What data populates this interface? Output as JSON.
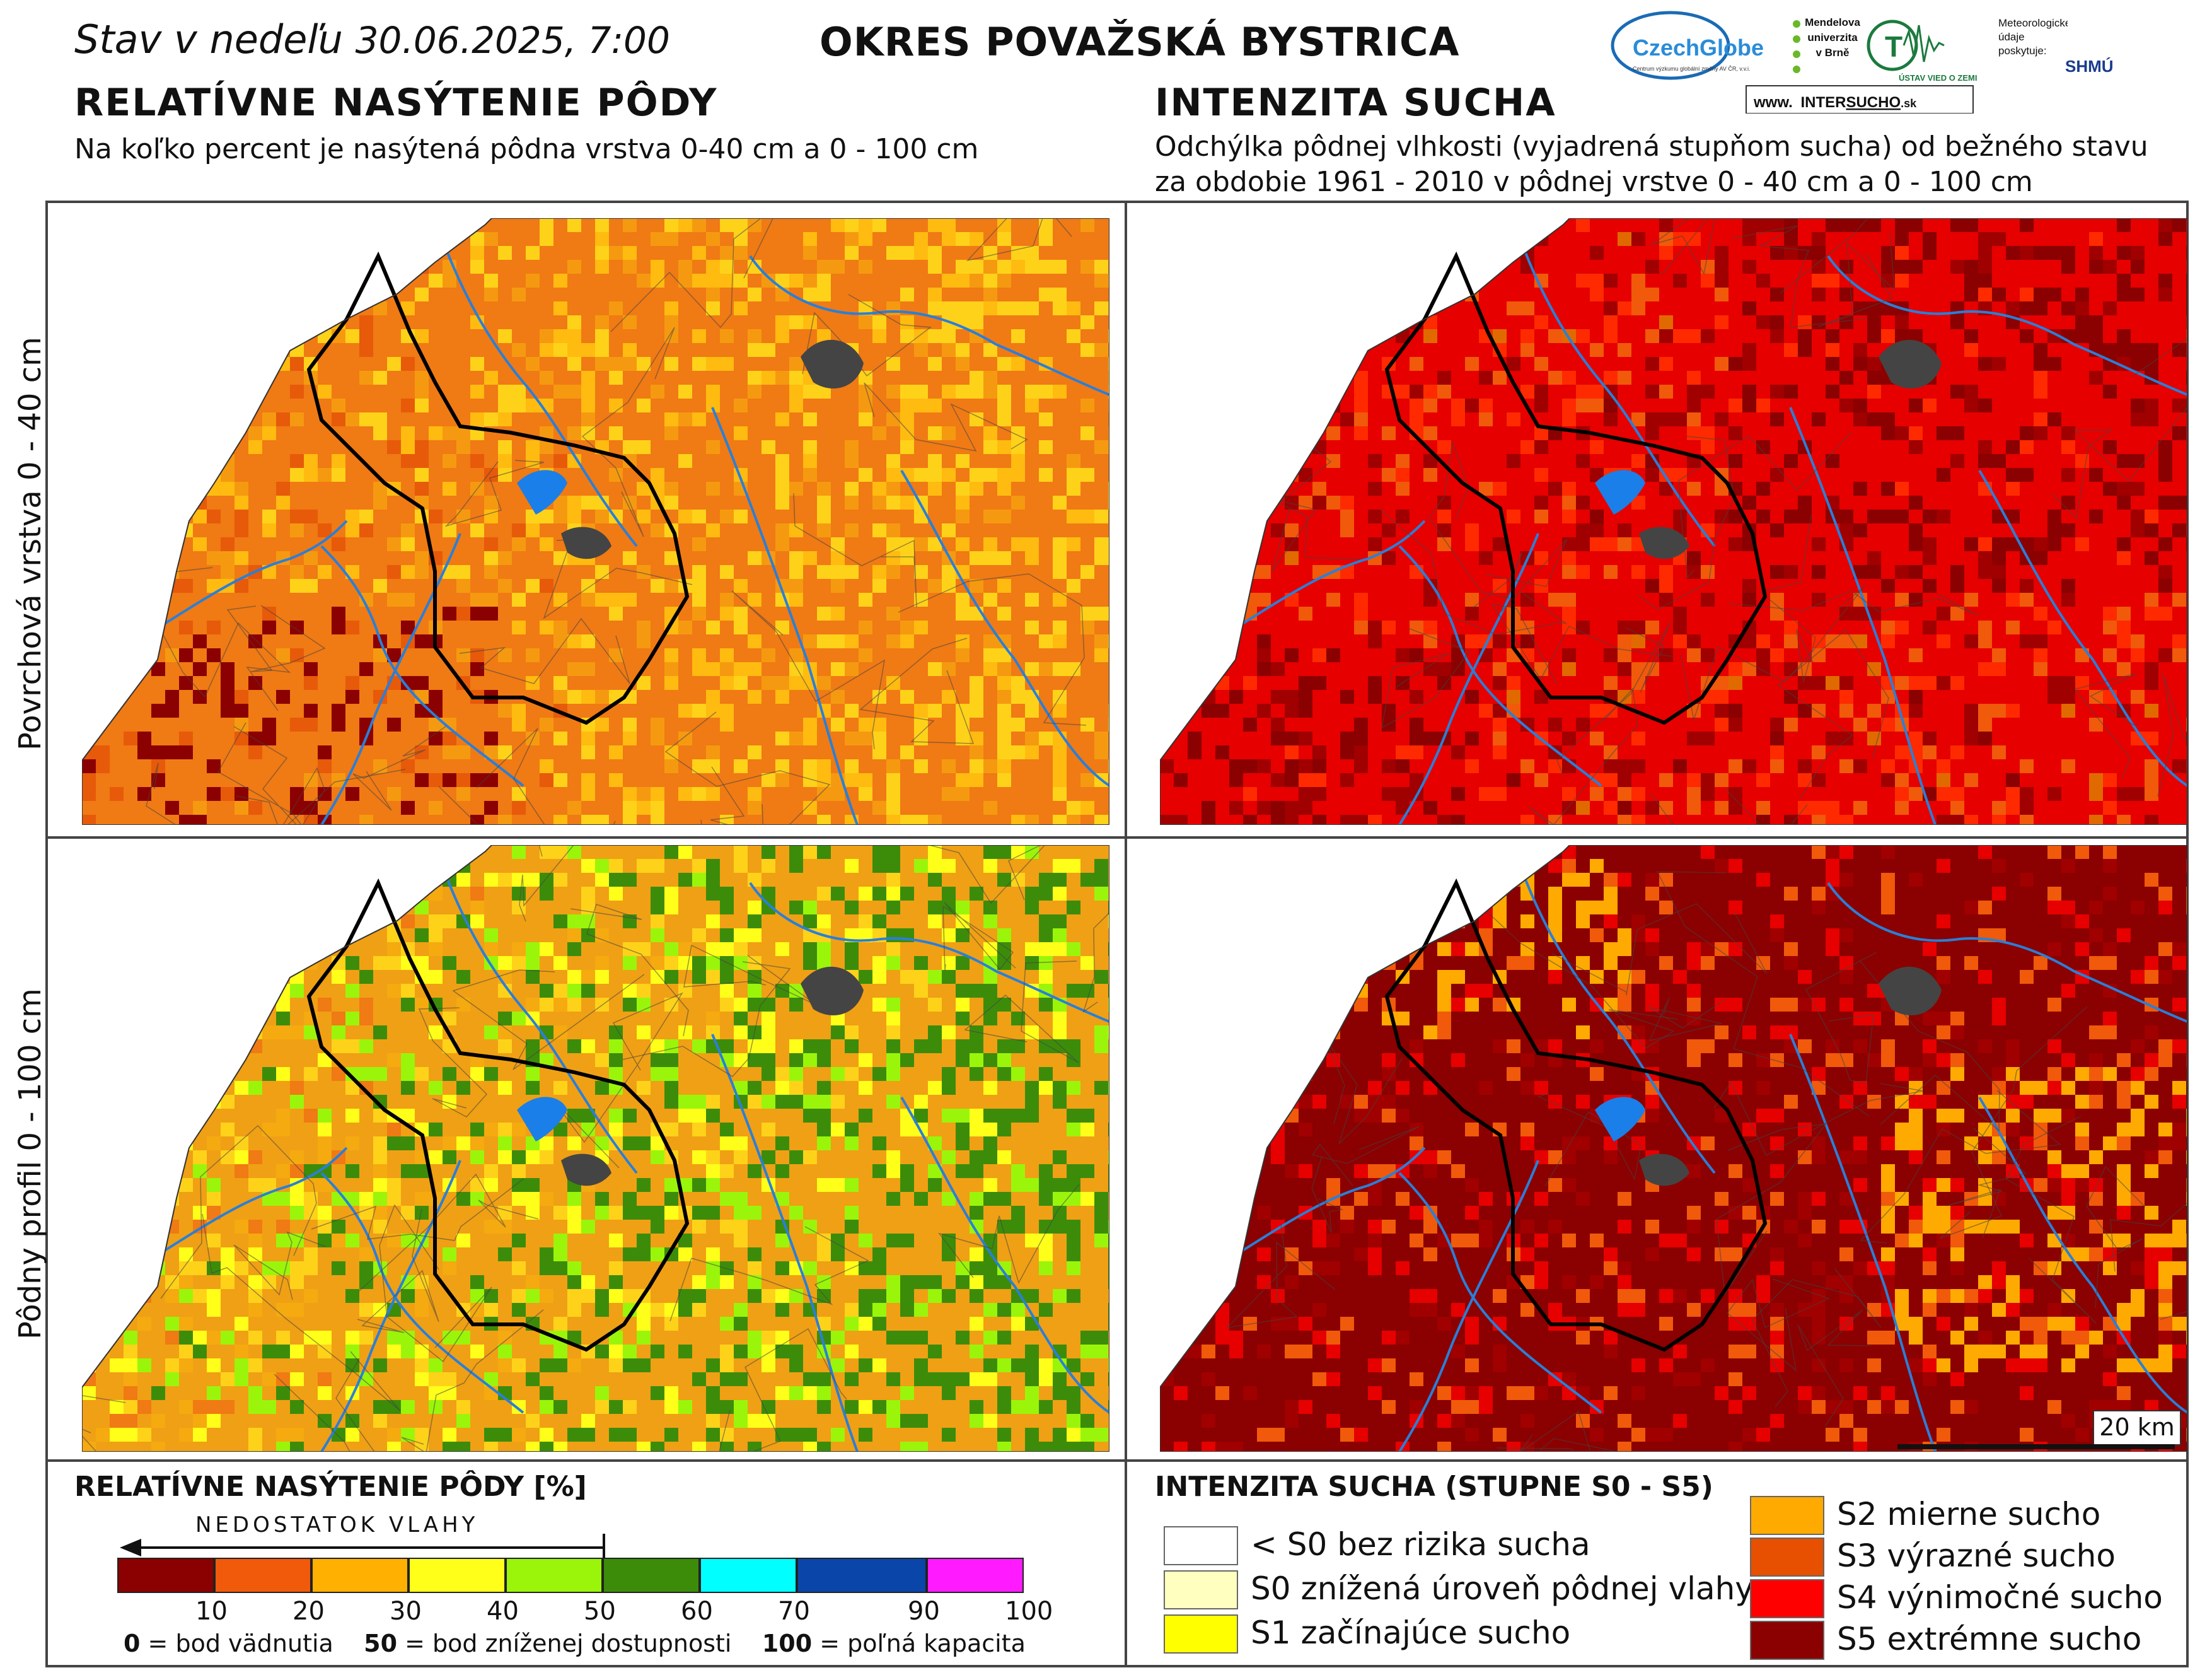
{
  "header": {
    "date_prefix": "Stav v nedeľu",
    "date": "30.06.2025, 7:00",
    "district": "OKRES  POVAŽSKÁ BYSTRICA"
  },
  "logos": {
    "czechglobe": "CzechGlobe",
    "czechglobe_sub": "Centrum výzkumu globální změny AV ČR, v.v.i.",
    "mendel": "Mendelova univerzita v Brně",
    "ustav": "ÚSTAV VIED O ZEMI",
    "meteo": "Meteorologické údaje poskytuje:",
    "shmu": "SHMÚ",
    "intersucho_prefix": "www.",
    "intersucho_a": "INTER",
    "intersucho_b": "SUCHO",
    "intersucho_suffix": ".sk"
  },
  "left_section": {
    "title": "RELATÍVNE NASÝTENIE PÔDY",
    "subtitle": "Na koľko percent je nasýtená pôdna vrstva 0-40 cm a 0 - 100 cm"
  },
  "right_section": {
    "title": "INTENZITA SUCHA",
    "subtitle_line1": "Odchýlka pôdnej vlhkosti (vyjadrená stupňom sucha) od bežného stavu",
    "subtitle_line2": "za obdobie 1961 - 2010 v pôdnej vrstve 0 - 40 cm a 0 - 100 cm"
  },
  "row_labels": {
    "top": "Povrchová vrstva 0 - 40 cm",
    "bottom": "Pôdny profil 0 - 100 cm"
  },
  "scale_bar": "20 km",
  "saturation_legend": {
    "title": "RELATÍVNE NASÝTENIE PÔDY [%]",
    "arrow_label": "NEDOSTATOK VLAHY",
    "colors": [
      "#8b0000",
      "#f05a0a",
      "#ffb000",
      "#ffff1a",
      "#9bf50a",
      "#3c8c0a",
      "#00ffff",
      "#0a46aa",
      "#ff1aff"
    ],
    "ticks": [
      "10",
      "20",
      "30",
      "40",
      "50",
      "60",
      "70",
      "90",
      "100"
    ],
    "note_0": "0",
    "note_0_text": " = bod vädnutia",
    "note_50": "50",
    "note_50_text": " = bod zníženej dostupnosti",
    "note_100": "100",
    "note_100_text": " = poľná kapacita"
  },
  "drought_legend": {
    "title": "INTENZITA SUCHA (STUPNE S0 - S5)",
    "items_left": [
      {
        "label": "< S0 bez rizika sucha",
        "color": "#ffffff"
      },
      {
        "label": "S0 znížená úroveň pôdnej vlahy",
        "color": "#ffffc0"
      },
      {
        "label": "S1 začínajúce sucho",
        "color": "#ffff00"
      }
    ],
    "items_right": [
      {
        "label": "S2 mierne sucho",
        "color": "#ffaa00"
      },
      {
        "label": "S3 výrazné sucho",
        "color": "#e65000"
      },
      {
        "label": "S4 výnimočné sucho",
        "color": "#ff0000"
      },
      {
        "label": "S5 extrémne sucho",
        "color": "#8b0000"
      }
    ]
  },
  "maps": [
    {
      "id": "saturation-topsoil",
      "dominant": "#f07a14"
    },
    {
      "id": "drought-topsoil",
      "dominant": "#e60000"
    },
    {
      "id": "saturation-profile",
      "dominant": "#f0a014"
    },
    {
      "id": "drought-profile",
      "dominant": "#8b0000"
    }
  ]
}
